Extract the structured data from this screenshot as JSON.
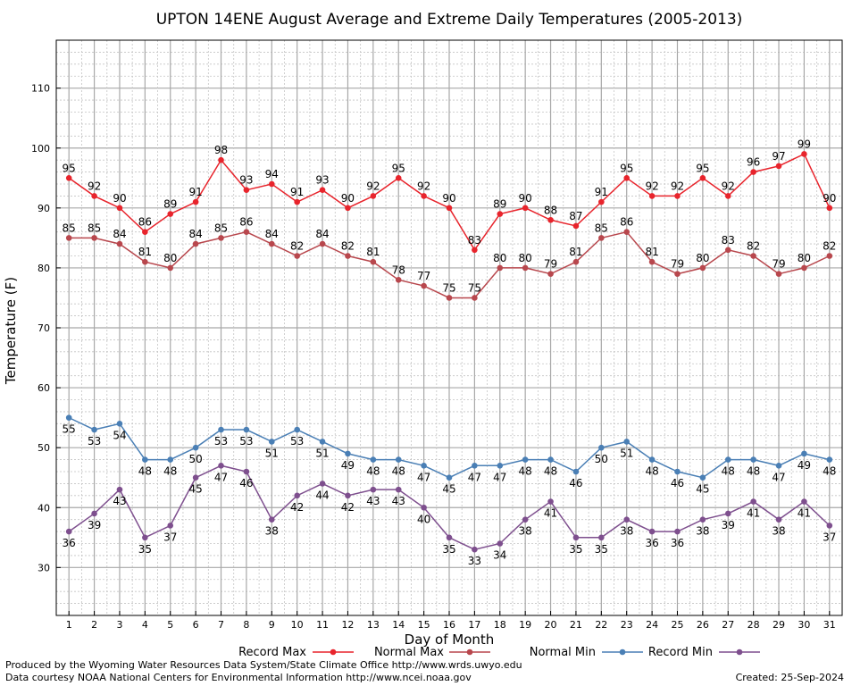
{
  "chart_data": {
    "type": "line",
    "title": "UPTON 14ENE August Average and Extreme Daily Temperatures (2005-2013)",
    "xlabel": "Day of Month",
    "ylabel": "Temperature (F)",
    "x": [
      1,
      2,
      3,
      4,
      5,
      6,
      7,
      8,
      9,
      10,
      11,
      12,
      13,
      14,
      15,
      16,
      17,
      18,
      19,
      20,
      21,
      22,
      23,
      24,
      25,
      26,
      27,
      28,
      29,
      30,
      31
    ],
    "xlim": [
      0.5,
      31.5
    ],
    "ylim": [
      22,
      118
    ],
    "yticks": [
      30,
      40,
      50,
      60,
      70,
      80,
      90,
      100,
      110
    ],
    "grid": true,
    "legend_position": "bottom",
    "series": [
      {
        "name": "Record Max",
        "color": "#e8242c",
        "label_position": "above",
        "values": [
          95,
          92,
          90,
          86,
          89,
          91,
          98,
          93,
          94,
          91,
          93,
          90,
          92,
          95,
          92,
          90,
          83,
          89,
          90,
          88,
          87,
          91,
          95,
          92,
          92,
          95,
          92,
          96,
          97,
          99,
          90
        ]
      },
      {
        "name": "Normal Max",
        "color": "#b8474d",
        "label_position": "above",
        "values": [
          85,
          85,
          84,
          81,
          80,
          84,
          85,
          86,
          84,
          82,
          84,
          82,
          81,
          78,
          77,
          75,
          75,
          80,
          80,
          79,
          81,
          85,
          86,
          81,
          79,
          80,
          83,
          82,
          79,
          80,
          82
        ]
      },
      {
        "name": "Normal Min",
        "color": "#4a7fb5",
        "label_position": "below",
        "values": [
          55,
          53,
          54,
          48,
          48,
          50,
          53,
          53,
          51,
          53,
          51,
          49,
          48,
          48,
          47,
          45,
          47,
          47,
          48,
          48,
          46,
          50,
          51,
          48,
          46,
          45,
          48,
          48,
          47,
          49,
          48
        ]
      },
      {
        "name": "Record Min",
        "color": "#7e4f8e",
        "label_position": "below",
        "values": [
          36,
          39,
          43,
          35,
          37,
          45,
          47,
          46,
          38,
          42,
          44,
          42,
          43,
          43,
          40,
          35,
          33,
          34,
          38,
          41,
          35,
          35,
          38,
          36,
          36,
          38,
          39,
          41,
          38,
          41,
          37
        ]
      }
    ]
  },
  "footer": {
    "produced_by": "Produced by the Wyoming Water Resources Data System/State Climate Office http://www.wrds.uwyo.edu",
    "data_courtesy": "Data courtesy NOAA National Centers for Environmental Information http://www.ncei.noaa.gov",
    "created": "Created:  25-Sep-2024"
  }
}
